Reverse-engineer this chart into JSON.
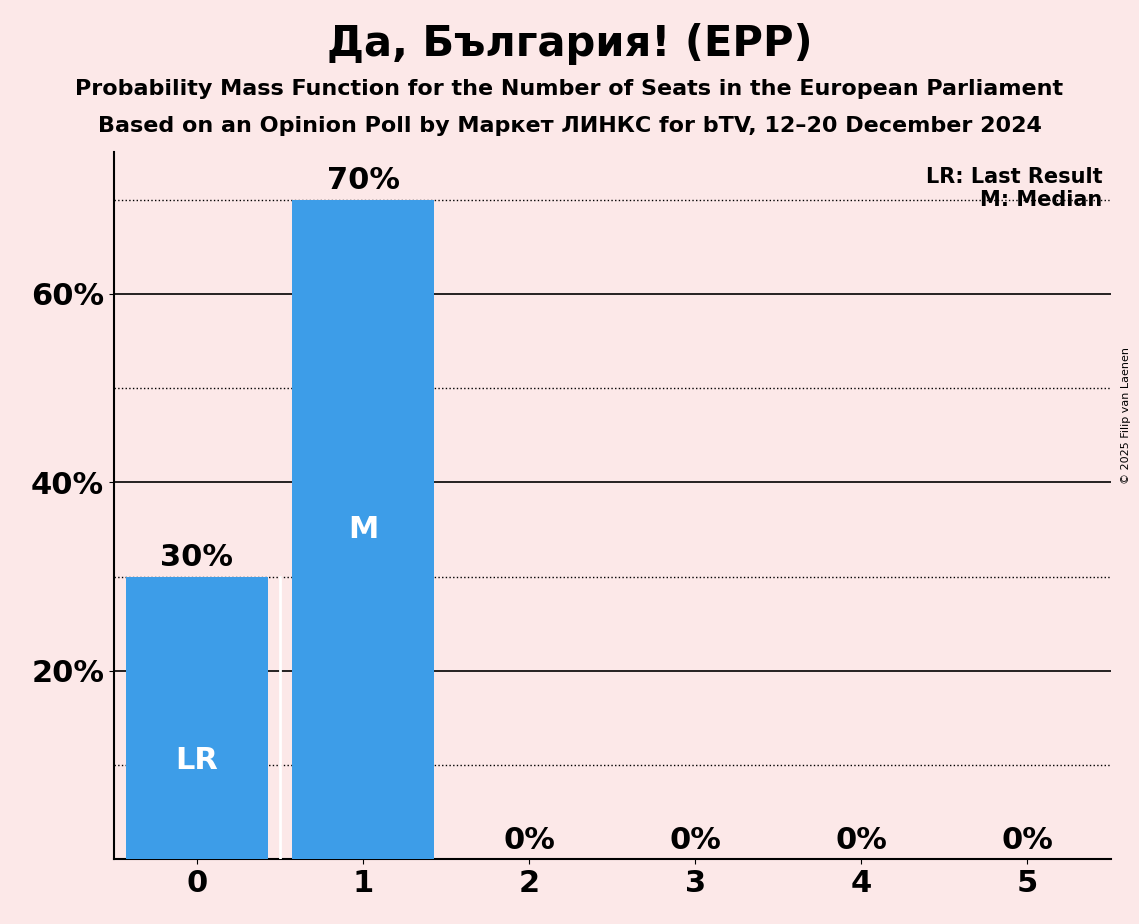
{
  "title": "Да, България! (EPP)",
  "subtitle1": "Probability Mass Function for the Number of Seats in the European Parliament",
  "subtitle2": "Based on an Opinion Poll by Маркет ЛИНКС for bTV, 12–20 December 2024",
  "copyright": "© 2025 Filip van Laenen",
  "categories": [
    0,
    1,
    2,
    3,
    4,
    5
  ],
  "values": [
    0.3,
    0.7,
    0.0,
    0.0,
    0.0,
    0.0
  ],
  "bar_color": "#3d9de8",
  "background_color": "#fce8e8",
  "bar_labels": [
    "30%",
    "70%",
    "0%",
    "0%",
    "0%",
    "0%"
  ],
  "last_result_seat": 0,
  "median_seat": 1,
  "lr_label": "LR",
  "m_label": "M",
  "legend_lr": "LR: Last Result",
  "legend_m": "M: Median",
  "ylim": [
    0,
    0.75
  ],
  "ytick_positions": [
    0.2,
    0.4,
    0.6
  ],
  "ytick_labels": [
    "20%",
    "40%",
    "60%"
  ],
  "dotted_lines": [
    0.1,
    0.3,
    0.5,
    0.7
  ],
  "solid_lines": [
    0.2,
    0.4,
    0.6
  ],
  "title_fontsize": 30,
  "subtitle_fontsize": 16,
  "tick_fontsize": 22,
  "bar_label_fontsize": 22,
  "bar_inlabel_fontsize": 22,
  "legend_fontsize": 15
}
